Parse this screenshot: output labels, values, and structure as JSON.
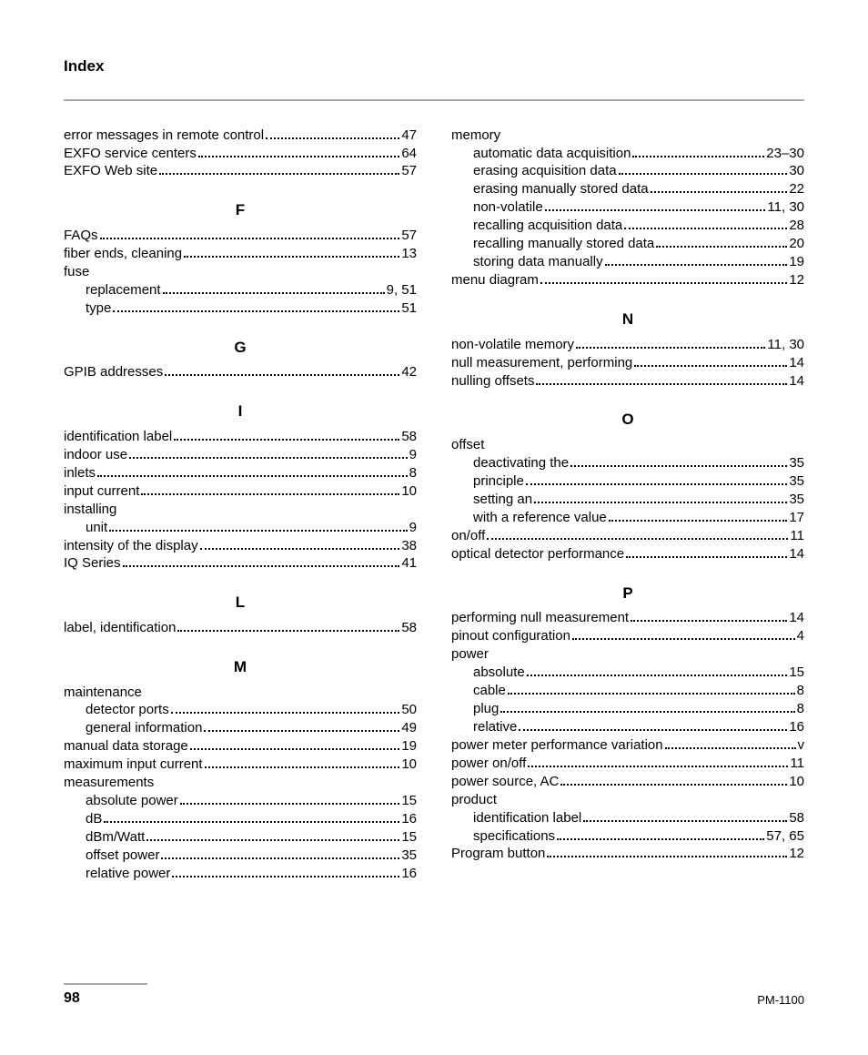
{
  "running_head": "Index",
  "page_number": "98",
  "doc_id": "PM-1100",
  "left": {
    "top": [
      {
        "t": "error messages in remote control",
        "p": "47"
      },
      {
        "t": "EXFO service centers",
        "p": "64"
      },
      {
        "t": "EXFO Web site",
        "p": "57"
      }
    ],
    "F": [
      {
        "t": "FAQs",
        "p": "57"
      },
      {
        "t": "fiber ends, cleaning",
        "p": "13"
      },
      {
        "t": "fuse",
        "nl": true
      },
      {
        "t": "replacement",
        "p": "9, 51",
        "sub": true
      },
      {
        "t": "type",
        "p": "51",
        "sub": true
      }
    ],
    "G": [
      {
        "t": "GPIB addresses",
        "p": "42"
      }
    ],
    "I": [
      {
        "t": "identification label",
        "p": "58"
      },
      {
        "t": "indoor use",
        "p": "9"
      },
      {
        "t": "inlets",
        "p": "8"
      },
      {
        "t": "input current",
        "p": "10"
      },
      {
        "t": "installing",
        "nl": true
      },
      {
        "t": "unit",
        "p": "9",
        "sub": true
      },
      {
        "t": "intensity of the display",
        "p": "38"
      },
      {
        "t": "IQ Series",
        "p": "41"
      }
    ],
    "L": [
      {
        "t": "label, identification",
        "p": "58"
      }
    ],
    "M": [
      {
        "t": "maintenance",
        "nl": true
      },
      {
        "t": "detector ports",
        "p": "50",
        "sub": true
      },
      {
        "t": "general information",
        "p": "49",
        "sub": true
      },
      {
        "t": "manual data storage",
        "p": "19"
      },
      {
        "t": "maximum input current",
        "p": "10"
      },
      {
        "t": "measurements",
        "nl": true
      },
      {
        "t": "absolute power",
        "p": "15",
        "sub": true
      },
      {
        "t": "dB",
        "p": "16",
        "sub": true
      },
      {
        "t": "dBm/Watt",
        "p": "15",
        "sub": true
      },
      {
        "t": "offset power",
        "p": "35",
        "sub": true
      },
      {
        "t": "relative power",
        "p": "16",
        "sub": true
      }
    ]
  },
  "right": {
    "top": [
      {
        "t": "memory",
        "nl": true
      },
      {
        "t": "automatic data acquisition",
        "p": "23–30",
        "sub": true
      },
      {
        "t": "erasing acquisition data",
        "p": "30",
        "sub": true
      },
      {
        "t": "erasing manually stored data",
        "p": "22",
        "sub": true
      },
      {
        "t": "non-volatile",
        "p": "11, 30",
        "sub": true
      },
      {
        "t": "recalling acquisition data",
        "p": "28",
        "sub": true
      },
      {
        "t": "recalling manually stored data",
        "p": "20",
        "sub": true
      },
      {
        "t": "storing data manually",
        "p": "19",
        "sub": true
      },
      {
        "t": "menu diagram",
        "p": "12"
      }
    ],
    "N": [
      {
        "t": "non-volatile memory",
        "p": "11, 30"
      },
      {
        "t": "null measurement, performing",
        "p": "14"
      },
      {
        "t": "nulling offsets",
        "p": "14"
      }
    ],
    "O": [
      {
        "t": "offset",
        "nl": true
      },
      {
        "t": "deactivating the",
        "p": "35",
        "sub": true
      },
      {
        "t": "principle",
        "p": "35",
        "sub": true
      },
      {
        "t": "setting an",
        "p": "35",
        "sub": true
      },
      {
        "t": "with a reference value",
        "p": "17",
        "sub": true
      },
      {
        "t": "on/off",
        "p": "11"
      },
      {
        "t": "optical detector performance",
        "p": "14"
      }
    ],
    "P": [
      {
        "t": "performing null measurement",
        "p": "14"
      },
      {
        "t": "pinout configuration",
        "p": "4"
      },
      {
        "t": "power",
        "nl": true
      },
      {
        "t": "absolute",
        "p": "15",
        "sub": true
      },
      {
        "t": "cable",
        "p": "8",
        "sub": true
      },
      {
        "t": "plug",
        "p": "8",
        "sub": true
      },
      {
        "t": "relative",
        "p": "16",
        "sub": true
      },
      {
        "t": "power meter performance variation",
        "p": "v"
      },
      {
        "t": "power on/off",
        "p": "11"
      },
      {
        "t": "power source, AC",
        "p": "10"
      },
      {
        "t": "product",
        "nl": true
      },
      {
        "t": "identification label",
        "p": "58",
        "sub": true
      },
      {
        "t": "specifications",
        "p": "57, 65",
        "sub": true
      },
      {
        "t": "Program button",
        "p": "12"
      }
    ]
  }
}
